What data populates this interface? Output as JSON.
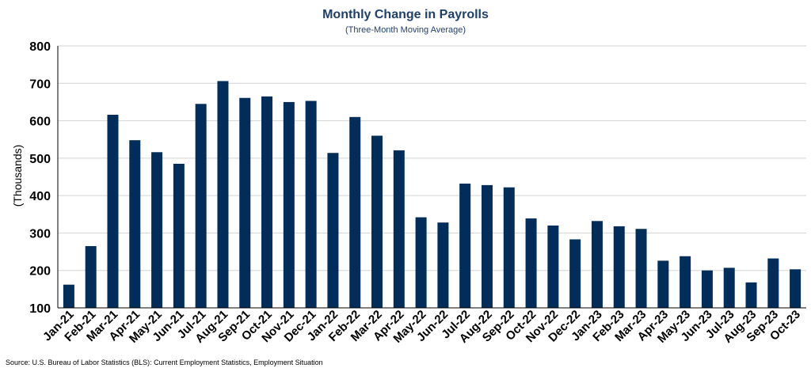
{
  "colors": {
    "bar": "#002d5a",
    "title": "#1f3f6b",
    "grid": "#d3d3d3",
    "axis": "#000000"
  },
  "source": "Source: U.S. Bureau of Labor Statistics (BLS): Current Employment Statistics, Employment Situation",
  "chart_data": {
    "type": "bar",
    "title": "Monthly Change in Payrolls",
    "subtitle": "(Three-Month Moving Average)",
    "xlabel": "",
    "ylabel": "(Thousands)",
    "ylim": [
      100,
      800
    ],
    "yticks": [
      "100",
      "200",
      "300",
      "400",
      "500",
      "600",
      "700",
      "800"
    ],
    "grid": true,
    "legend": "none",
    "categories": [
      "Jan-21",
      "Feb-21",
      "Mar-21",
      "Apr-21",
      "May-21",
      "Jun-21",
      "Jul-21",
      "Aug-21",
      "Sep-21",
      "Oct-21",
      "Nov-21",
      "Dec-21",
      "Jan-22",
      "Feb-22",
      "Mar-22",
      "Apr-22",
      "May-22",
      "Jun-22",
      "Jul-22",
      "Aug-22",
      "Sep-22",
      "Oct-22",
      "Nov-22",
      "Dec-22",
      "Jan-23",
      "Feb-23",
      "Mar-23",
      "Apr-23",
      "May-23",
      "Jun-23",
      "Jul-23",
      "Aug-23",
      "Sep-23",
      "Oct-23"
    ],
    "values": [
      162,
      265,
      616,
      548,
      516,
      485,
      645,
      706,
      661,
      665,
      650,
      653,
      514,
      610,
      560,
      521,
      342,
      328,
      432,
      428,
      422,
      339,
      320,
      283,
      332,
      318,
      311,
      226,
      238,
      200,
      207,
      168,
      232,
      203
    ]
  }
}
